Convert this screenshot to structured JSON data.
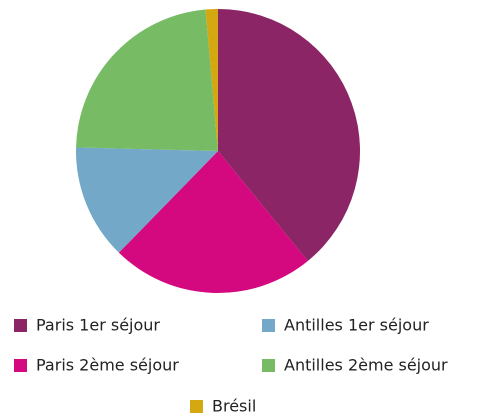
{
  "chart_data": {
    "type": "pie",
    "categories": [
      "Paris 1er séjour",
      "Paris 2ème séjour",
      "Antilles 1er séjour",
      "Antilles 2ème séjour",
      "Brésil"
    ],
    "values": [
      39.1,
      23.2,
      13.1,
      23.2,
      1.4
    ],
    "colors": [
      "#8b2566",
      "#d4087f",
      "#74a8c9",
      "#77bb65",
      "#d4a810"
    ]
  }
}
